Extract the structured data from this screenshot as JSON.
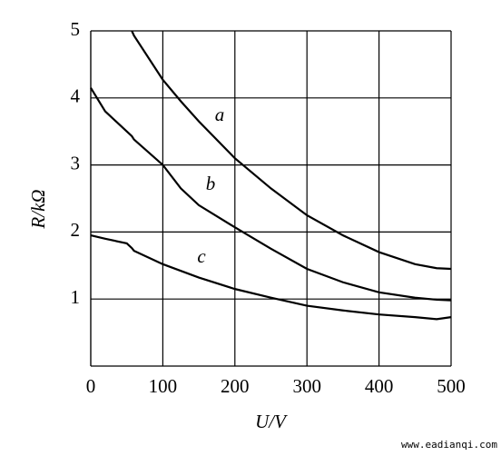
{
  "chart_data": {
    "type": "line",
    "x_label": "U/V",
    "y_label": "R/kΩ",
    "watermark": "www.eadianqi.com",
    "x": [
      0,
      20,
      50,
      57,
      60,
      100,
      125,
      150,
      200,
      250,
      300,
      350,
      400,
      450,
      480,
      500
    ],
    "series": [
      {
        "name": "a",
        "color": "#000000",
        "values": [
          null,
          null,
          null,
          5,
          4.93,
          4.27,
          3.95,
          3.65,
          3.1,
          2.65,
          2.25,
          1.95,
          1.7,
          1.52,
          1.46,
          1.45
        ]
      },
      {
        "name": "b",
        "color": "#000000",
        "values": [
          4.15,
          3.8,
          3.5,
          3.43,
          3.38,
          3.0,
          2.65,
          2.4,
          2.07,
          1.75,
          1.45,
          1.25,
          1.1,
          1.02,
          0.99,
          0.98
        ]
      },
      {
        "name": "c",
        "color": "#000000",
        "values": [
          1.95,
          1.9,
          1.83,
          1.76,
          1.72,
          1.52,
          1.42,
          1.32,
          1.15,
          1.02,
          0.9,
          0.83,
          0.77,
          0.73,
          0.7,
          0.73
        ]
      }
    ],
    "xlim": [
      0,
      500
    ],
    "xticks": [
      0,
      100,
      200,
      300,
      400,
      500
    ],
    "ylim": [
      0,
      5
    ],
    "yticks": [
      1,
      2,
      3,
      4,
      5
    ],
    "grid": true
  }
}
